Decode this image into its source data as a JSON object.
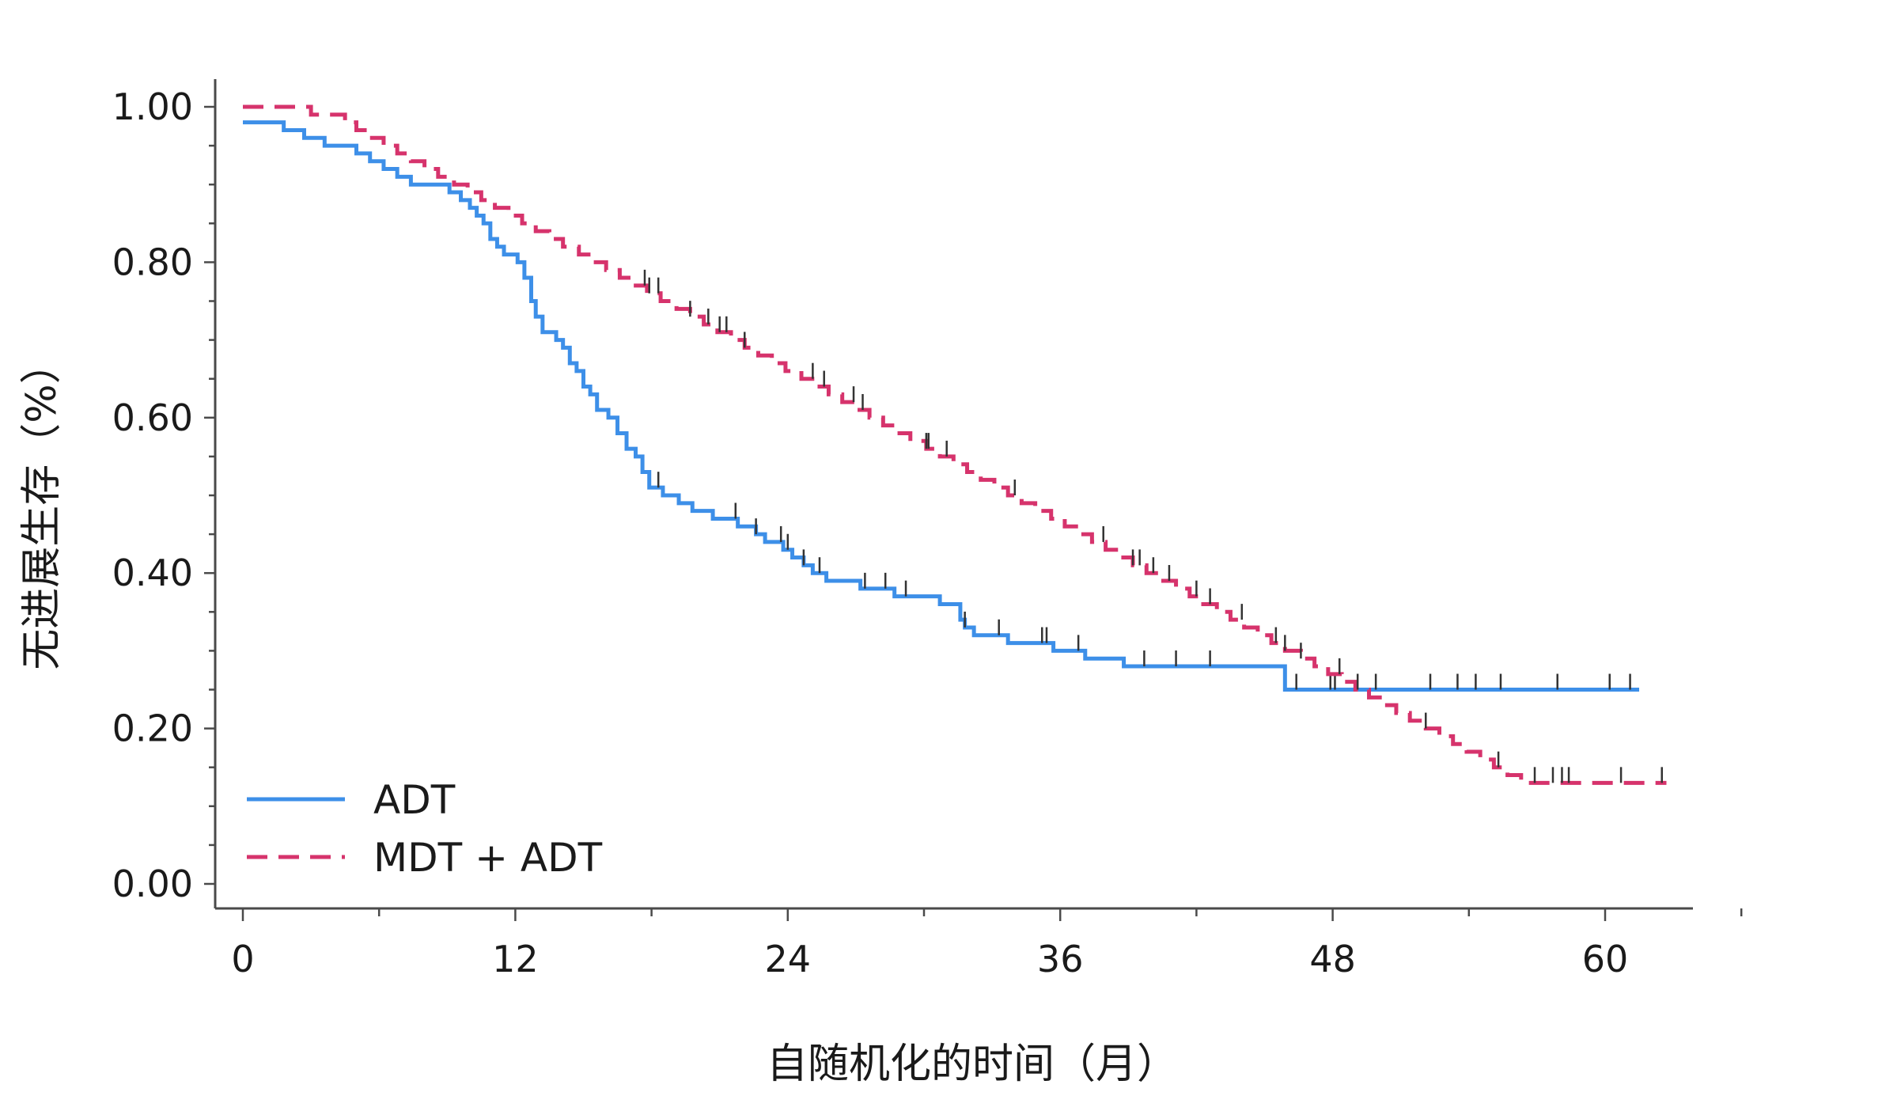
{
  "chart_data": {
    "type": "line",
    "subtype": "kaplan-meier",
    "title": "",
    "xlabel": "自随机化的时间（月）",
    "ylabel": "无进展生存（%）",
    "xlim": [
      0,
      64
    ],
    "ylim": [
      0,
      1.0
    ],
    "x_ticks": [
      0,
      12,
      24,
      36,
      48,
      60
    ],
    "x_tick_labels": [
      "0",
      "12",
      "24",
      "36",
      "48",
      "60"
    ],
    "y_ticks": [
      0,
      0.2,
      0.4,
      0.6,
      0.8,
      1.0
    ],
    "y_tick_labels": [
      "0.00",
      "0.20",
      "0.40",
      "0.60",
      "0.80",
      "1.00"
    ],
    "grid": false,
    "legend_position": "bottom-left",
    "series": [
      {
        "name": "ADT",
        "color": "#3d8fe8",
        "line_style": "solid",
        "steps": [
          [
            0,
            0.98
          ],
          [
            1.8,
            0.97
          ],
          [
            2.7,
            0.96
          ],
          [
            3.6,
            0.95
          ],
          [
            5.0,
            0.94
          ],
          [
            5.6,
            0.93
          ],
          [
            6.2,
            0.92
          ],
          [
            6.8,
            0.91
          ],
          [
            7.4,
            0.9
          ],
          [
            9.1,
            0.89
          ],
          [
            9.6,
            0.88
          ],
          [
            10.0,
            0.87
          ],
          [
            10.3,
            0.86
          ],
          [
            10.6,
            0.85
          ],
          [
            10.9,
            0.83
          ],
          [
            11.2,
            0.82
          ],
          [
            11.5,
            0.81
          ],
          [
            12.1,
            0.8
          ],
          [
            12.4,
            0.78
          ],
          [
            12.7,
            0.75
          ],
          [
            12.9,
            0.73
          ],
          [
            13.2,
            0.71
          ],
          [
            13.8,
            0.7
          ],
          [
            14.1,
            0.69
          ],
          [
            14.4,
            0.67
          ],
          [
            14.7,
            0.66
          ],
          [
            15.0,
            0.64
          ],
          [
            15.3,
            0.63
          ],
          [
            15.6,
            0.61
          ],
          [
            16.1,
            0.6
          ],
          [
            16.5,
            0.58
          ],
          [
            16.9,
            0.56
          ],
          [
            17.3,
            0.55
          ],
          [
            17.6,
            0.53
          ],
          [
            17.9,
            0.51
          ],
          [
            18.5,
            0.5
          ],
          [
            19.2,
            0.49
          ],
          [
            19.8,
            0.48
          ],
          [
            20.7,
            0.47
          ],
          [
            21.8,
            0.46
          ],
          [
            22.6,
            0.45
          ],
          [
            23.0,
            0.44
          ],
          [
            23.8,
            0.43
          ],
          [
            24.2,
            0.42
          ],
          [
            24.7,
            0.41
          ],
          [
            25.1,
            0.4
          ],
          [
            25.7,
            0.39
          ],
          [
            27.2,
            0.38
          ],
          [
            28.7,
            0.37
          ],
          [
            30.7,
            0.36
          ],
          [
            31.6,
            0.34
          ],
          [
            31.8,
            0.33
          ],
          [
            32.2,
            0.32
          ],
          [
            33.7,
            0.31
          ],
          [
            35.7,
            0.3
          ],
          [
            37.1,
            0.29
          ],
          [
            38.8,
            0.28
          ],
          [
            45.9,
            0.25
          ]
        ],
        "end_x": 61.5,
        "censor_times": [
          18.3,
          21.7,
          22.6,
          23.7,
          24.0,
          24.7,
          25.4,
          27.4,
          28.3,
          29.2,
          31.8,
          33.3,
          35.2,
          35.4,
          36.8,
          39.7,
          41.1,
          42.6,
          46.4,
          47.9,
          48.1,
          49.9,
          52.3,
          53.5,
          54.3,
          55.4,
          57.9,
          60.2,
          61.1
        ]
      },
      {
        "name": "MDT + ADT",
        "color": "#d6336c",
        "line_style": "dashed",
        "steps": [
          [
            0,
            1.0
          ],
          [
            3.0,
            0.99
          ],
          [
            4.5,
            0.98
          ],
          [
            5.0,
            0.97
          ],
          [
            5.6,
            0.96
          ],
          [
            6.2,
            0.95
          ],
          [
            6.8,
            0.94
          ],
          [
            7.4,
            0.93
          ],
          [
            8.0,
            0.92
          ],
          [
            8.6,
            0.91
          ],
          [
            9.3,
            0.9
          ],
          [
            9.9,
            0.89
          ],
          [
            10.5,
            0.88
          ],
          [
            11.1,
            0.87
          ],
          [
            11.7,
            0.86
          ],
          [
            12.3,
            0.85
          ],
          [
            12.9,
            0.84
          ],
          [
            13.5,
            0.83
          ],
          [
            14.1,
            0.82
          ],
          [
            14.8,
            0.81
          ],
          [
            15.4,
            0.8
          ],
          [
            16.0,
            0.79
          ],
          [
            16.6,
            0.78
          ],
          [
            17.2,
            0.77
          ],
          [
            17.8,
            0.76
          ],
          [
            18.4,
            0.75
          ],
          [
            19.1,
            0.74
          ],
          [
            19.7,
            0.73
          ],
          [
            20.3,
            0.72
          ],
          [
            20.9,
            0.71
          ],
          [
            21.5,
            0.7
          ],
          [
            22.1,
            0.69
          ],
          [
            22.7,
            0.68
          ],
          [
            23.3,
            0.67
          ],
          [
            23.9,
            0.66
          ],
          [
            24.6,
            0.65
          ],
          [
            25.2,
            0.64
          ],
          [
            25.8,
            0.63
          ],
          [
            26.4,
            0.62
          ],
          [
            27.0,
            0.61
          ],
          [
            27.6,
            0.6
          ],
          [
            28.2,
            0.59
          ],
          [
            28.8,
            0.58
          ],
          [
            29.4,
            0.57
          ],
          [
            30.1,
            0.56
          ],
          [
            30.7,
            0.55
          ],
          [
            31.3,
            0.54
          ],
          [
            31.9,
            0.53
          ],
          [
            32.5,
            0.52
          ],
          [
            33.1,
            0.51
          ],
          [
            33.7,
            0.5
          ],
          [
            34.3,
            0.49
          ],
          [
            34.9,
            0.48
          ],
          [
            35.6,
            0.47
          ],
          [
            36.2,
            0.46
          ],
          [
            36.8,
            0.45
          ],
          [
            37.4,
            0.44
          ],
          [
            38.0,
            0.43
          ],
          [
            38.6,
            0.42
          ],
          [
            39.2,
            0.41
          ],
          [
            39.8,
            0.4
          ],
          [
            40.4,
            0.39
          ],
          [
            41.1,
            0.38
          ],
          [
            41.7,
            0.37
          ],
          [
            42.3,
            0.36
          ],
          [
            42.9,
            0.35
          ],
          [
            43.5,
            0.34
          ],
          [
            44.1,
            0.33
          ],
          [
            44.7,
            0.32
          ],
          [
            45.3,
            0.31
          ],
          [
            45.9,
            0.3
          ],
          [
            46.6,
            0.29
          ],
          [
            47.2,
            0.28
          ],
          [
            47.8,
            0.27
          ],
          [
            48.4,
            0.26
          ],
          [
            49.0,
            0.25
          ],
          [
            49.6,
            0.24
          ],
          [
            50.2,
            0.23
          ],
          [
            50.8,
            0.22
          ],
          [
            51.4,
            0.21
          ],
          [
            52.1,
            0.2
          ],
          [
            52.7,
            0.19
          ],
          [
            53.3,
            0.18
          ],
          [
            53.9,
            0.17
          ],
          [
            54.5,
            0.16
          ],
          [
            55.1,
            0.15
          ],
          [
            55.7,
            0.14
          ],
          [
            56.3,
            0.13
          ]
        ],
        "end_x": 62.7,
        "censor_times": [
          17.7,
          17.9,
          18.3,
          19.7,
          20.5,
          21.0,
          21.3,
          22.1,
          25.1,
          25.6,
          26.9,
          27.3,
          30.1,
          30.2,
          31.0,
          34.0,
          37.9,
          39.2,
          39.5,
          40.1,
          40.8,
          42.0,
          42.6,
          44.0,
          45.5,
          45.9,
          46.6,
          48.3,
          49.1,
          52.1,
          55.3,
          56.9,
          57.7,
          58.1,
          58.4,
          60.7,
          62.5
        ]
      }
    ]
  }
}
